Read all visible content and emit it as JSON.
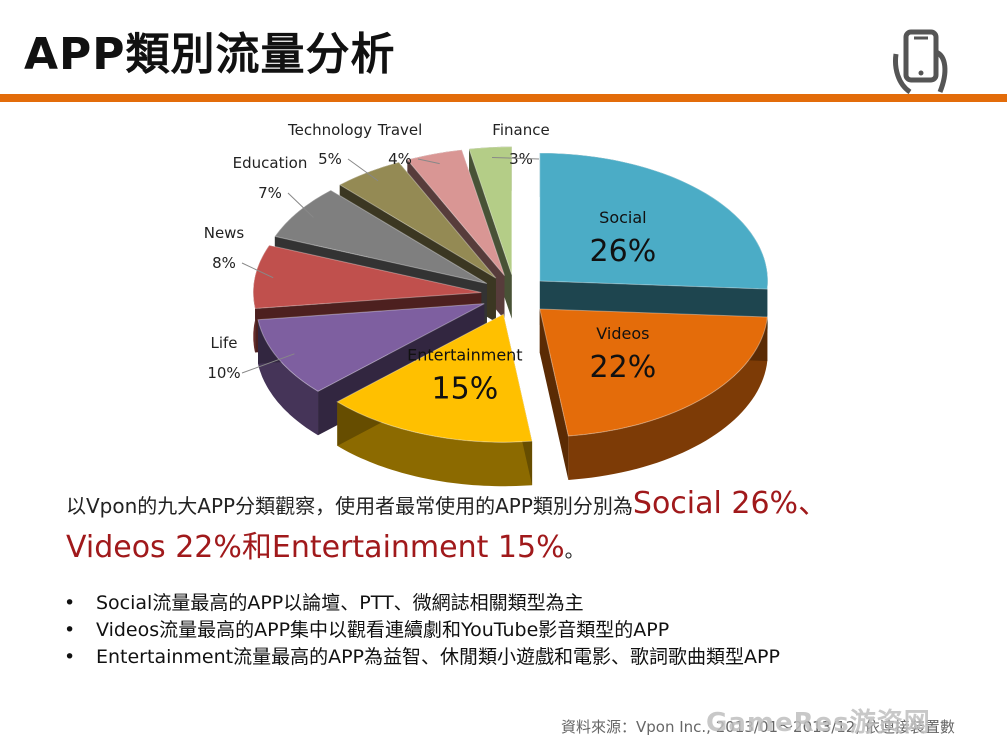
{
  "header": {
    "title": "APP類別流量分析",
    "accent_color": "#e36c0a",
    "icon": "smartphone-hand-icon"
  },
  "chart_data": {
    "type": "pie",
    "style": "3d-exploded",
    "legend": "none",
    "slices": [
      {
        "name": "Social",
        "value": 26,
        "label": "26%",
        "color": "#4bacc6"
      },
      {
        "name": "Videos",
        "value": 22,
        "label": "22%",
        "color": "#e46c0a"
      },
      {
        "name": "Entertainment",
        "value": 15,
        "label": "15%",
        "color": "#ffc000"
      },
      {
        "name": "Life",
        "value": 10,
        "label": "10%",
        "color": "#7e5fa0"
      },
      {
        "name": "News",
        "value": 8,
        "label": "8%",
        "color": "#c0504d"
      },
      {
        "name": "Education",
        "value": 7,
        "label": "7%",
        "color": "#7f7f7f"
      },
      {
        "name": "Technology",
        "value": 5,
        "label": "5%",
        "color": "#948a54"
      },
      {
        "name": "Travel",
        "value": 4,
        "label": "4%",
        "color": "#d99694"
      },
      {
        "name": "Finance",
        "value": 3,
        "label": "3%",
        "color": "#b4cd87"
      }
    ]
  },
  "summary": {
    "line1": "以Vpon的九大APP分類觀察，使用者最常使用的APP類別分別為",
    "highlight1": "Social 26%、",
    "highlight2": "Videos 22%和Entertainment 15%",
    "end": "。",
    "highlight_color": "#a0191b"
  },
  "bullets": [
    "Social流量最高的APP以論壇、PTT、微網誌相關類型為主",
    "Videos流量最高的APP集中以觀看連續劇和YouTube影音類型的APP",
    "Entertainment流量最高的APP為益智、休閒類小遊戲和電影、歌詞歌曲類型APP"
  ],
  "bullet_symbol": "•",
  "source": "資料來源：Vpon Inc., 2013/01～2013/12, 依連接裝置數",
  "watermark": "GameRes游资网"
}
